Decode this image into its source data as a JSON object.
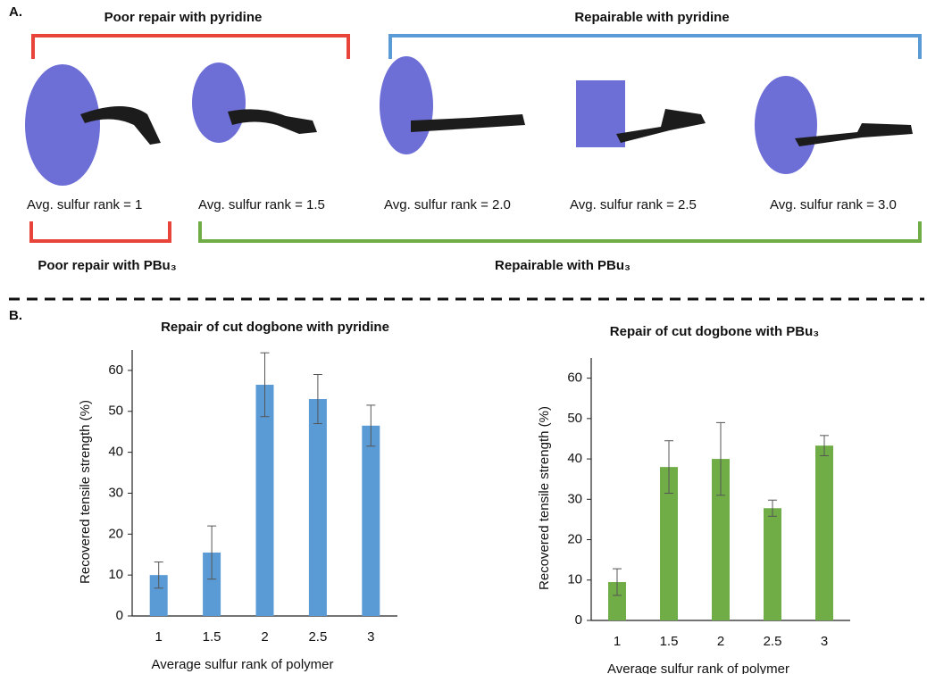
{
  "panel_a": {
    "label": "A.",
    "top_left_label": "Poor repair with pyridine",
    "top_right_label": "Repairable with pyridine",
    "bottom_left_label": "Poor repair with PBu₃",
    "bottom_right_label": "Repairable with PBu₃",
    "captions": [
      "Avg. sulfur rank = 1",
      "Avg. sulfur rank = 1.5",
      "Avg. sulfur rank = 2.0",
      "Avg. sulfur rank = 2.5",
      "Avg. sulfur rank = 3.0"
    ]
  },
  "panel_b": {
    "label": "B."
  },
  "chart_data": [
    {
      "type": "bar",
      "title": "Repair of cut dogbone with pyridine",
      "x_label": "Average sulfur rank of polymer",
      "y_label": "Recovered tensile strength (%)",
      "categories": [
        "1",
        "1.5",
        "2",
        "2.5",
        "3"
      ],
      "values": [
        10,
        15.5,
        56.5,
        53,
        46.5
      ],
      "errors": [
        3.2,
        6.5,
        7.8,
        6,
        5
      ],
      "color": "#5b9bd5",
      "ylim": [
        0,
        65
      ],
      "yticks": [
        0,
        10,
        20,
        30,
        40,
        50,
        60
      ]
    },
    {
      "type": "bar",
      "title": "Repair of cut dogbone with PBu₃",
      "x_label": "Average sulfur rank of polymer",
      "y_label": "Recovered tensile strength (%)",
      "categories": [
        "1",
        "1.5",
        "2",
        "2.5",
        "3"
      ],
      "values": [
        9.5,
        38,
        40,
        27.8,
        43.3
      ],
      "errors": [
        3.3,
        6.5,
        9,
        2,
        2.5
      ],
      "color": "#70ad47",
      "ylim": [
        0,
        65
      ],
      "yticks": [
        0,
        10,
        20,
        30,
        40,
        50,
        60
      ]
    }
  ]
}
